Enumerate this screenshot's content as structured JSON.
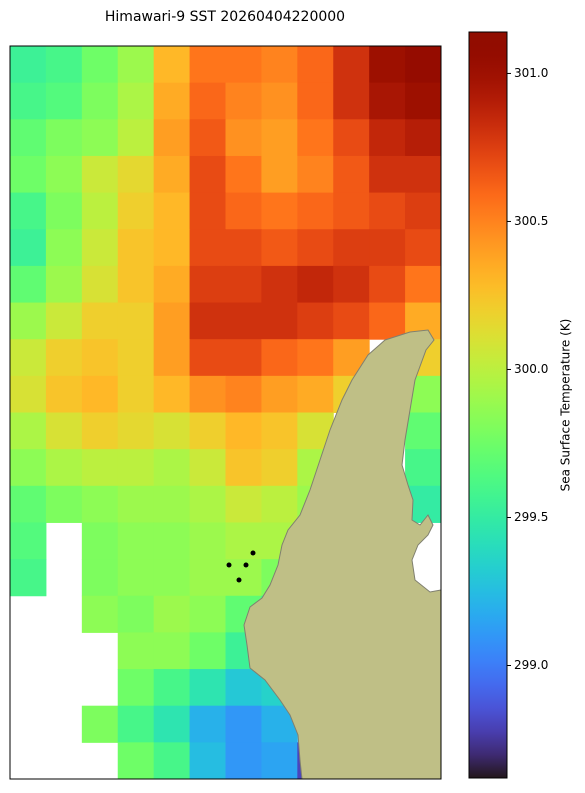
{
  "chart_data": {
    "type": "heatmap",
    "title": "Himawari-9 SST 20260404220000",
    "colormap": "turbo",
    "values": [
      [
        299.55,
        299.6,
        299.75,
        299.9,
        300.3,
        300.55,
        300.55,
        300.5,
        300.6,
        300.8,
        301.0,
        301.05
      ],
      [
        299.6,
        299.65,
        299.8,
        299.95,
        300.35,
        300.6,
        300.5,
        300.45,
        300.6,
        300.8,
        300.95,
        301.0
      ],
      [
        299.7,
        299.8,
        299.85,
        300.0,
        300.4,
        300.65,
        300.45,
        300.4,
        300.55,
        300.7,
        300.85,
        300.9
      ],
      [
        299.75,
        299.85,
        300.05,
        300.15,
        300.35,
        300.7,
        300.55,
        300.4,
        300.5,
        300.65,
        300.8,
        300.8
      ],
      [
        299.6,
        299.8,
        300.0,
        300.2,
        300.3,
        300.7,
        300.6,
        300.55,
        300.6,
        300.65,
        300.7,
        300.75
      ],
      [
        299.55,
        299.85,
        300.05,
        300.25,
        300.3,
        300.7,
        300.7,
        300.65,
        300.7,
        300.75,
        300.75,
        300.7
      ],
      [
        299.7,
        299.9,
        300.1,
        300.25,
        300.35,
        300.75,
        300.75,
        300.8,
        300.85,
        300.8,
        300.7,
        300.55
      ],
      [
        299.9,
        300.05,
        300.2,
        300.2,
        300.4,
        300.8,
        300.8,
        300.8,
        300.75,
        300.7,
        300.6,
        300.35
      ],
      [
        300.05,
        300.2,
        300.25,
        300.2,
        300.4,
        300.7,
        300.7,
        300.6,
        300.55,
        300.4,
        null,
        300.2
      ],
      [
        300.1,
        300.25,
        300.3,
        300.2,
        300.3,
        300.45,
        300.5,
        300.4,
        300.35,
        300.2,
        null,
        299.85
      ],
      [
        299.95,
        300.1,
        300.2,
        300.15,
        300.1,
        300.2,
        300.3,
        300.25,
        300.1,
        null,
        null,
        299.7
      ],
      [
        299.85,
        299.95,
        300.0,
        300.0,
        299.95,
        300.05,
        300.25,
        300.2,
        299.95,
        null,
        null,
        299.6
      ],
      [
        299.7,
        299.8,
        299.85,
        299.9,
        299.9,
        299.95,
        300.05,
        300.0,
        299.9,
        null,
        null,
        299.5
      ],
      [
        299.65,
        null,
        299.8,
        299.85,
        299.85,
        299.9,
        299.95,
        299.95,
        null,
        null,
        null,
        null
      ],
      [
        299.6,
        null,
        299.8,
        299.85,
        299.85,
        299.9,
        299.9,
        299.8,
        null,
        null,
        null,
        null
      ],
      [
        null,
        null,
        299.85,
        299.8,
        299.9,
        299.85,
        299.7,
        299.55,
        null,
        null,
        null,
        null
      ],
      [
        null,
        null,
        null,
        299.85,
        299.85,
        299.75,
        299.55,
        299.4,
        null,
        null,
        null,
        null
      ],
      [
        null,
        null,
        null,
        299.75,
        299.6,
        299.45,
        299.3,
        299.35,
        null,
        null,
        null,
        null
      ],
      [
        null,
        null,
        299.8,
        299.6,
        299.45,
        299.2,
        299.1,
        299.2,
        null,
        null,
        null,
        null
      ],
      [
        null,
        null,
        null,
        299.75,
        299.6,
        299.25,
        299.1,
        299.15,
        298.8,
        null,
        null,
        null
      ]
    ],
    "zlim": [
      298.62,
      301.14
    ],
    "zticks": [
      {
        "value": 299,
        "label": "299.0"
      },
      299.5,
      {
        "value": 300,
        "label": "300.0"
      },
      300.5,
      {
        "value": 301,
        "label": "301.0"
      }
    ],
    "colorbar_label": "Sea Surface Temperature (K)"
  }
}
